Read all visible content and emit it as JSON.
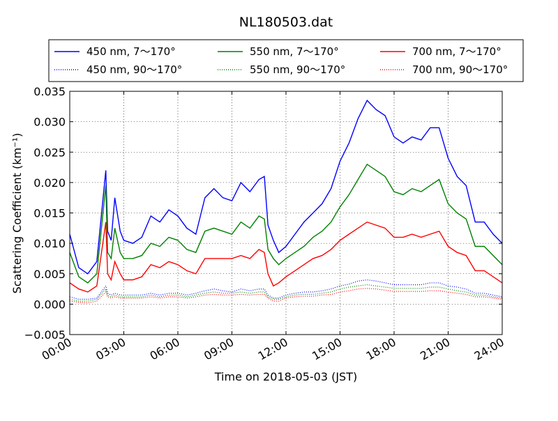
{
  "chart_data": {
    "type": "line",
    "title": "NL180503.dat",
    "xlabel": "Time on 2018-05-03 (JST)",
    "ylabel": "Scattering Coefficient (km⁻¹)",
    "xlim": [
      0,
      24
    ],
    "ylim": [
      -0.005,
      0.035
    ],
    "x_ticks": [
      "00:00",
      "03:00",
      "06:00",
      "09:00",
      "12:00",
      "15:00",
      "18:00",
      "21:00",
      "24:00"
    ],
    "y_ticks": [
      "−0.005",
      "0.000",
      "0.005",
      "0.010",
      "0.015",
      "0.020",
      "0.025",
      "0.030",
      "0.035"
    ],
    "grid": true,
    "legend_position": "top",
    "x_hours": [
      0,
      0.5,
      1,
      1.5,
      2,
      2.1,
      2.3,
      2.5,
      2.8,
      3,
      3.5,
      4,
      4.5,
      5,
      5.5,
      6,
      6.5,
      7,
      7.5,
      8,
      8.5,
      9,
      9.5,
      10,
      10.5,
      10.8,
      11,
      11.3,
      11.6,
      12,
      12.5,
      13,
      13.5,
      14,
      14.5,
      15,
      15.5,
      16,
      16.5,
      17,
      17.5,
      18,
      18.5,
      19,
      19.5,
      20,
      20.5,
      21,
      21.5,
      22,
      22.5,
      23,
      23.5,
      24
    ],
    "series": [
      {
        "name": "450 nm, 7～170°",
        "color": "#0000ff",
        "style": "solid",
        "values": [
          0.0115,
          0.006,
          0.005,
          0.007,
          0.022,
          0.012,
          0.0105,
          0.0175,
          0.012,
          0.0105,
          0.01,
          0.011,
          0.0145,
          0.0135,
          0.0155,
          0.0145,
          0.0125,
          0.0115,
          0.0175,
          0.019,
          0.0175,
          0.017,
          0.02,
          0.0185,
          0.0205,
          0.021,
          0.013,
          0.0105,
          0.0085,
          0.0095,
          0.0115,
          0.0135,
          0.015,
          0.0165,
          0.019,
          0.0235,
          0.0265,
          0.0305,
          0.0335,
          0.032,
          0.031,
          0.0275,
          0.0265,
          0.0275,
          0.027,
          0.029,
          0.029,
          0.024,
          0.021,
          0.0195,
          0.0135,
          0.0135,
          0.0115,
          0.01
        ]
      },
      {
        "name": "550 nm, 7～170°",
        "color": "#008000",
        "style": "solid",
        "values": [
          0.0085,
          0.0045,
          0.0035,
          0.005,
          0.0195,
          0.0085,
          0.0075,
          0.0125,
          0.0085,
          0.0075,
          0.0075,
          0.008,
          0.01,
          0.0095,
          0.011,
          0.0105,
          0.009,
          0.0085,
          0.012,
          0.0125,
          0.012,
          0.0115,
          0.0135,
          0.0125,
          0.0145,
          0.014,
          0.009,
          0.0075,
          0.0065,
          0.0075,
          0.0085,
          0.0095,
          0.011,
          0.012,
          0.0135,
          0.016,
          0.018,
          0.0205,
          0.023,
          0.022,
          0.021,
          0.0185,
          0.018,
          0.019,
          0.0185,
          0.0195,
          0.0205,
          0.0165,
          0.015,
          0.014,
          0.0095,
          0.0095,
          0.008,
          0.0065
        ]
      },
      {
        "name": "700 nm, 7～170°",
        "color": "#ff0000",
        "style": "solid",
        "values": [
          0.0035,
          0.0025,
          0.002,
          0.003,
          0.0135,
          0.005,
          0.004,
          0.007,
          0.005,
          0.004,
          0.004,
          0.0045,
          0.0065,
          0.006,
          0.007,
          0.0065,
          0.0055,
          0.005,
          0.0075,
          0.0075,
          0.0075,
          0.0075,
          0.008,
          0.0075,
          0.009,
          0.0085,
          0.005,
          0.003,
          0.0035,
          0.0045,
          0.0055,
          0.0065,
          0.0075,
          0.008,
          0.009,
          0.0105,
          0.0115,
          0.0125,
          0.0135,
          0.013,
          0.0125,
          0.011,
          0.011,
          0.0115,
          0.011,
          0.0115,
          0.012,
          0.0095,
          0.0085,
          0.008,
          0.0055,
          0.0055,
          0.0045,
          0.0035
        ]
      },
      {
        "name": "450 nm, 90～170°",
        "color": "#0000ff",
        "style": "dotted",
        "values": [
          0.0012,
          0.0008,
          0.0008,
          0.001,
          0.003,
          0.0018,
          0.0015,
          0.0018,
          0.0015,
          0.0015,
          0.0015,
          0.0015,
          0.0018,
          0.0015,
          0.0018,
          0.0018,
          0.0015,
          0.0018,
          0.0022,
          0.0025,
          0.0022,
          0.002,
          0.0025,
          0.0022,
          0.0025,
          0.0025,
          0.0015,
          0.001,
          0.001,
          0.0015,
          0.0018,
          0.002,
          0.002,
          0.0022,
          0.0025,
          0.003,
          0.0033,
          0.0038,
          0.004,
          0.0038,
          0.0035,
          0.0032,
          0.0032,
          0.0032,
          0.0032,
          0.0035,
          0.0035,
          0.003,
          0.0028,
          0.0025,
          0.0018,
          0.0018,
          0.0015,
          0.0012
        ]
      },
      {
        "name": "550 nm, 90～170°",
        "color": "#008000",
        "style": "dotted",
        "values": [
          0.0008,
          0.0005,
          0.0005,
          0.0008,
          0.0025,
          0.0015,
          0.0012,
          0.0015,
          0.0012,
          0.0012,
          0.0012,
          0.0012,
          0.0015,
          0.0012,
          0.0015,
          0.0015,
          0.0012,
          0.0015,
          0.0018,
          0.002,
          0.0018,
          0.0018,
          0.002,
          0.0018,
          0.002,
          0.002,
          0.0012,
          0.0008,
          0.0008,
          0.0012,
          0.0015,
          0.0016,
          0.0016,
          0.0018,
          0.002,
          0.0025,
          0.0028,
          0.003,
          0.0032,
          0.003,
          0.0028,
          0.0026,
          0.0026,
          0.0026,
          0.0026,
          0.0028,
          0.0028,
          0.0025,
          0.0022,
          0.002,
          0.0015,
          0.0015,
          0.0012,
          0.001
        ]
      },
      {
        "name": "700 nm, 90～170°",
        "color": "#ff0000",
        "style": "dotted",
        "values": [
          0.0005,
          0.0003,
          0.0002,
          0.0005,
          0.002,
          0.0012,
          0.001,
          0.0012,
          0.001,
          0.001,
          0.001,
          0.001,
          0.0012,
          0.001,
          0.0012,
          0.0012,
          0.001,
          0.0012,
          0.0015,
          0.0016,
          0.0015,
          0.0015,
          0.0016,
          0.0015,
          0.0016,
          0.0016,
          0.001,
          0.0005,
          0.0005,
          0.001,
          0.0012,
          0.0013,
          0.0013,
          0.0015,
          0.0016,
          0.002,
          0.0022,
          0.0025,
          0.0026,
          0.0025,
          0.0023,
          0.0021,
          0.0021,
          0.0021,
          0.0021,
          0.0022,
          0.0022,
          0.002,
          0.0018,
          0.0016,
          0.0012,
          0.0012,
          0.001,
          0.0008
        ]
      }
    ]
  }
}
